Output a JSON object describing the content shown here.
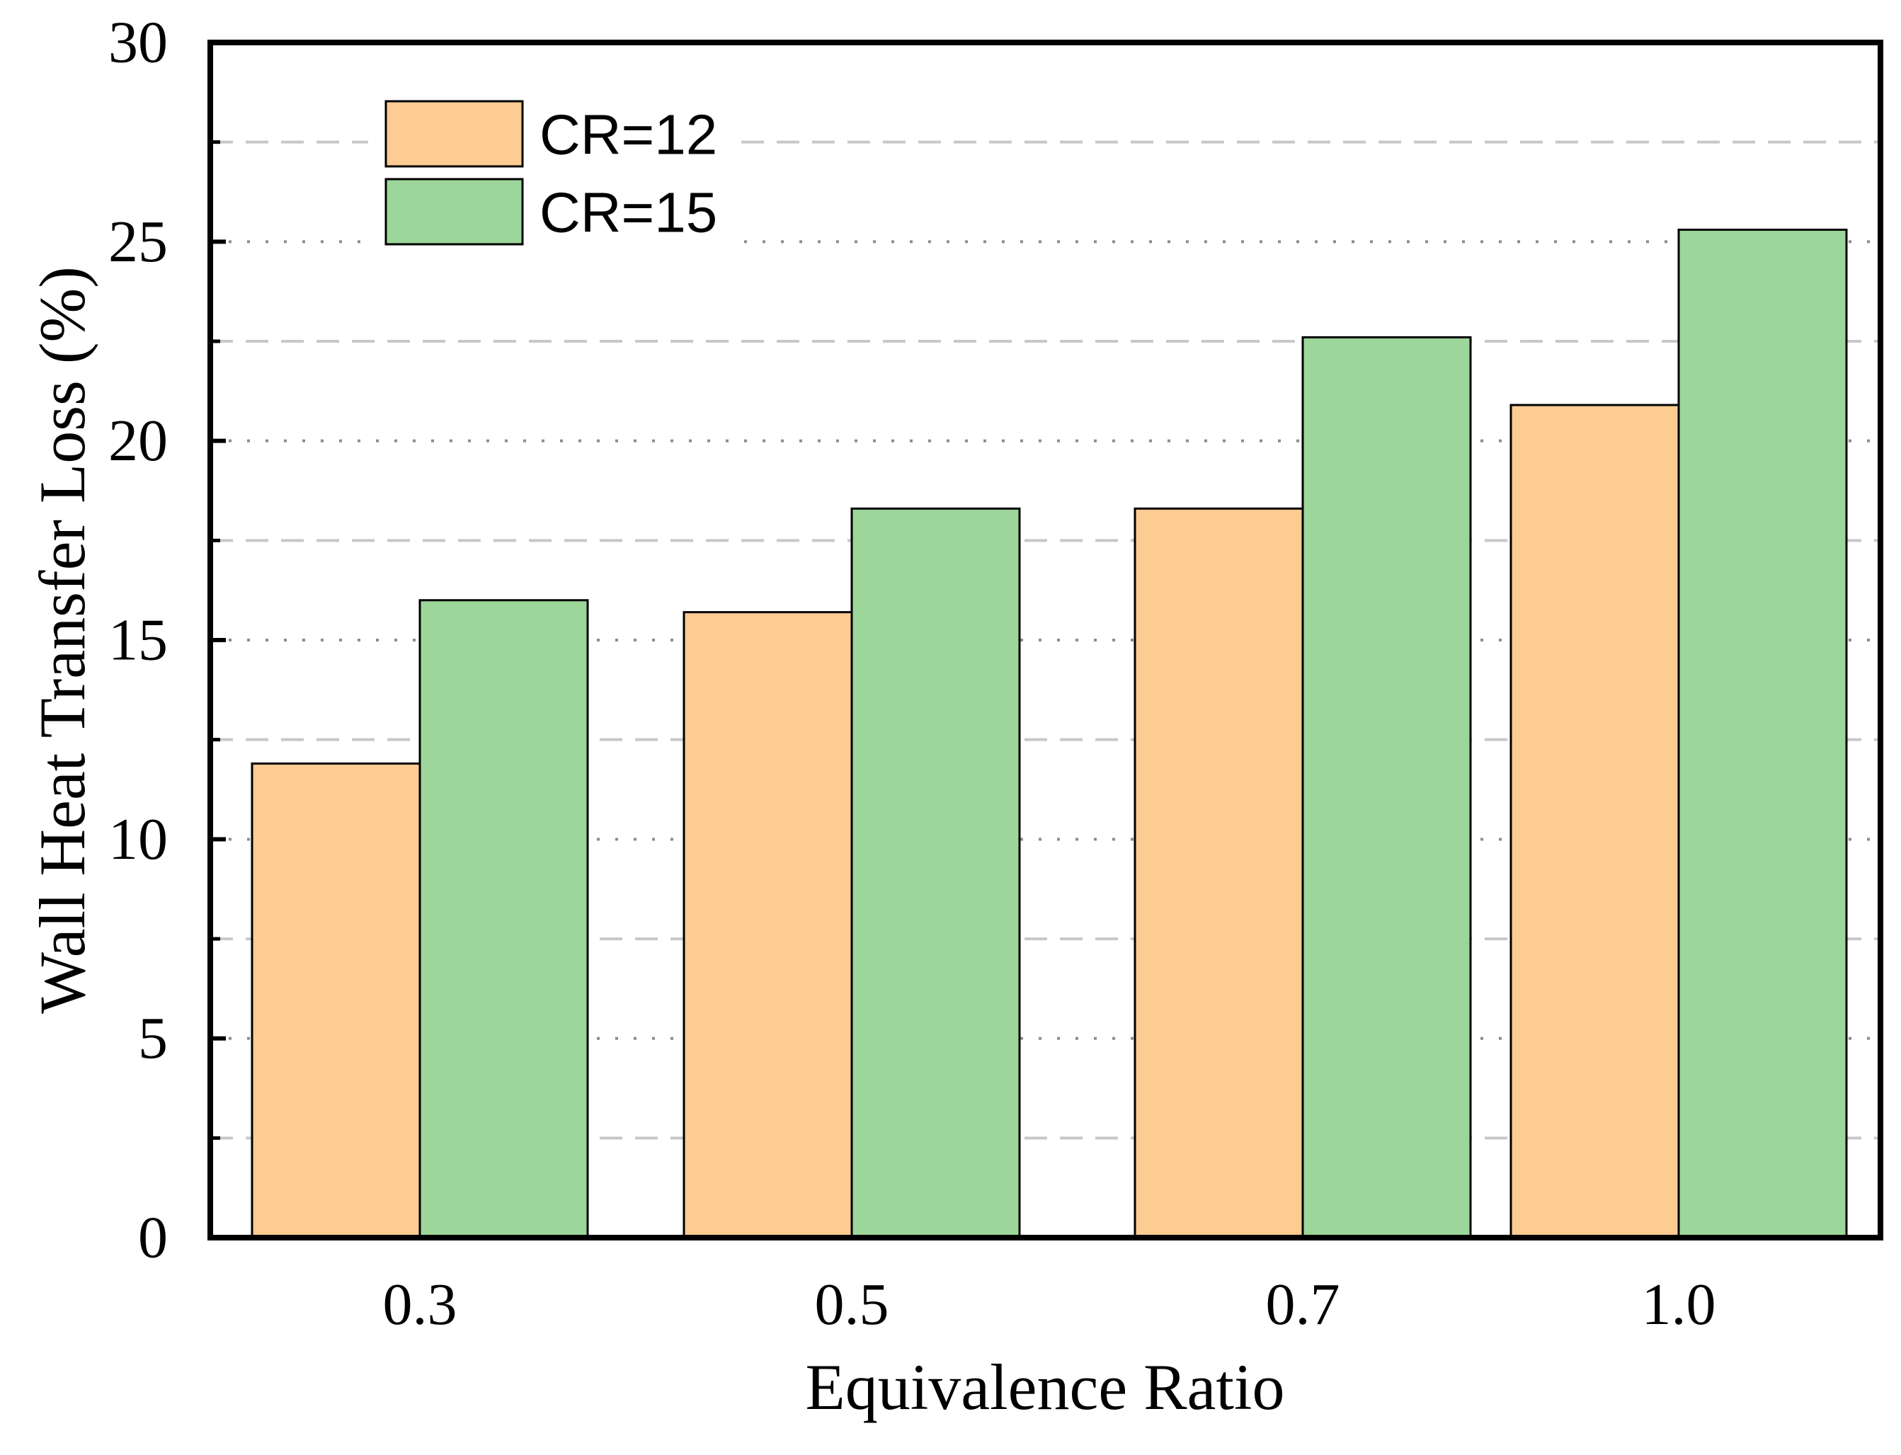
{
  "chart_data": {
    "type": "bar",
    "title": "",
    "xlabel": "Equivalence Ratio",
    "ylabel": "Wall Heat Transfer Loss (%)",
    "categories": [
      "0.3",
      "0.5",
      "0.7",
      "1.0"
    ],
    "series": [
      {
        "name": "CR=12",
        "color": "#FDCC92",
        "values": [
          11.9,
          15.7,
          18.3,
          20.9
        ]
      },
      {
        "name": "CR=15",
        "color": "#9DD69A",
        "values": [
          16.0,
          18.3,
          22.6,
          25.3
        ]
      }
    ],
    "ylim": [
      0,
      30
    ],
    "yticks": [
      0,
      5,
      10,
      15,
      20,
      25,
      30
    ],
    "ytick_labels": [
      "0",
      "5",
      "10",
      "15",
      "20",
      "25",
      "30"
    ],
    "major_grid": "dotted",
    "minor_grid": "dashed",
    "legend_position": "top-left"
  }
}
